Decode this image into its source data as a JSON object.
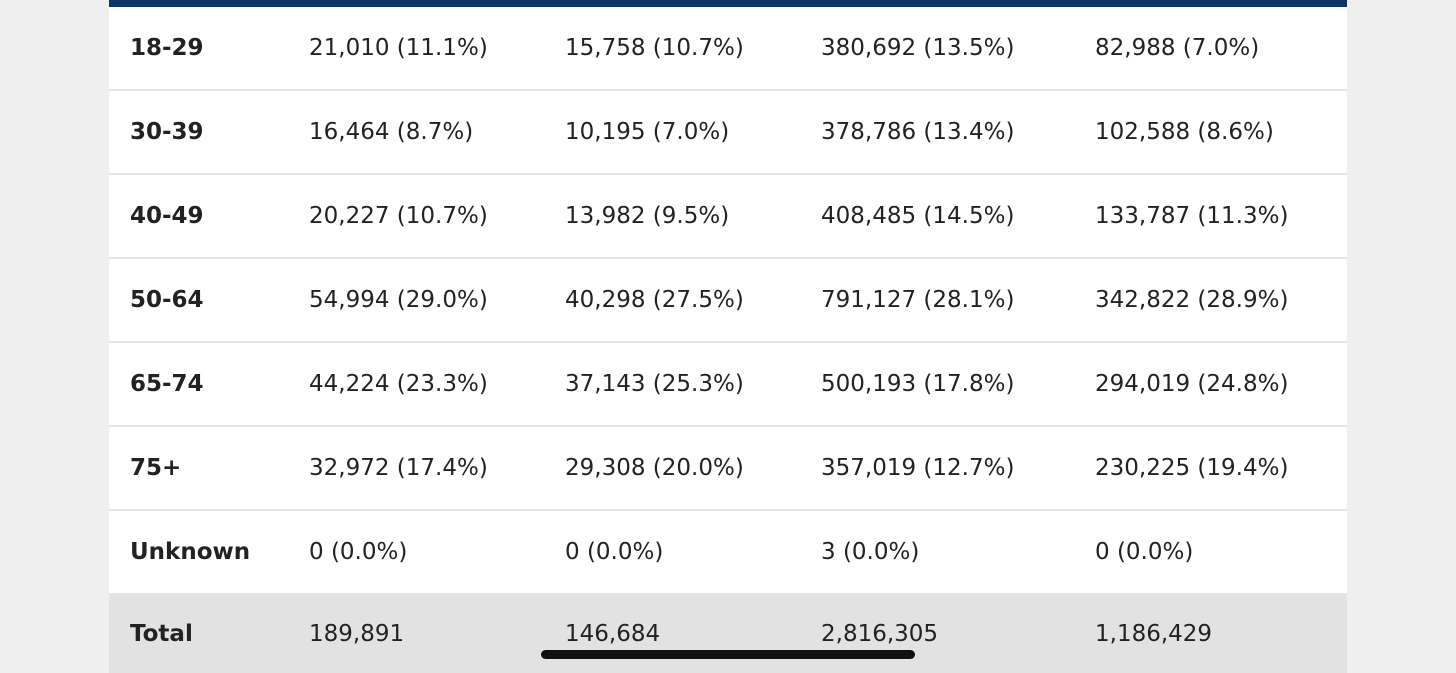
{
  "rows": [
    {
      "label": "18-29",
      "v1": "21,010 (11.1%)",
      "v2": "15,758 (10.7%)",
      "v3": "380,692 (13.5%)",
      "v4": "82,988 (7.0%)"
    },
    {
      "label": "30-39",
      "v1": "16,464 (8.7%)",
      "v2": "10,195 (7.0%)",
      "v3": "378,786 (13.4%)",
      "v4": "102,588 (8.6%)"
    },
    {
      "label": "40-49",
      "v1": "20,227 (10.7%)",
      "v2": "13,982 (9.5%)",
      "v3": "408,485 (14.5%)",
      "v4": "133,787 (11.3%)"
    },
    {
      "label": "50-64",
      "v1": "54,994 (29.0%)",
      "v2": "40,298 (27.5%)",
      "v3": "791,127 (28.1%)",
      "v4": "342,822 (28.9%)"
    },
    {
      "label": "65-74",
      "v1": "44,224 (23.3%)",
      "v2": "37,143 (25.3%)",
      "v3": "500,193 (17.8%)",
      "v4": "294,019 (24.8%)"
    },
    {
      "label": "75+",
      "v1": "32,972 (17.4%)",
      "v2": "29,308 (20.0%)",
      "v3": "357,019 (12.7%)",
      "v4": "230,225 (19.4%)"
    },
    {
      "label": "Unknown",
      "v1": "0 (0.0%)",
      "v2": "0 (0.0%)",
      "v3": "3 (0.0%)",
      "v4": "0 (0.0%)"
    }
  ],
  "total": {
    "label": "Total",
    "v1": "189,891",
    "v2": "146,684",
    "v3": "2,816,305",
    "v4": "1,186,429"
  },
  "colors": {
    "header_bar": "#0f3366",
    "total_row_bg": "#e2e2e2"
  }
}
